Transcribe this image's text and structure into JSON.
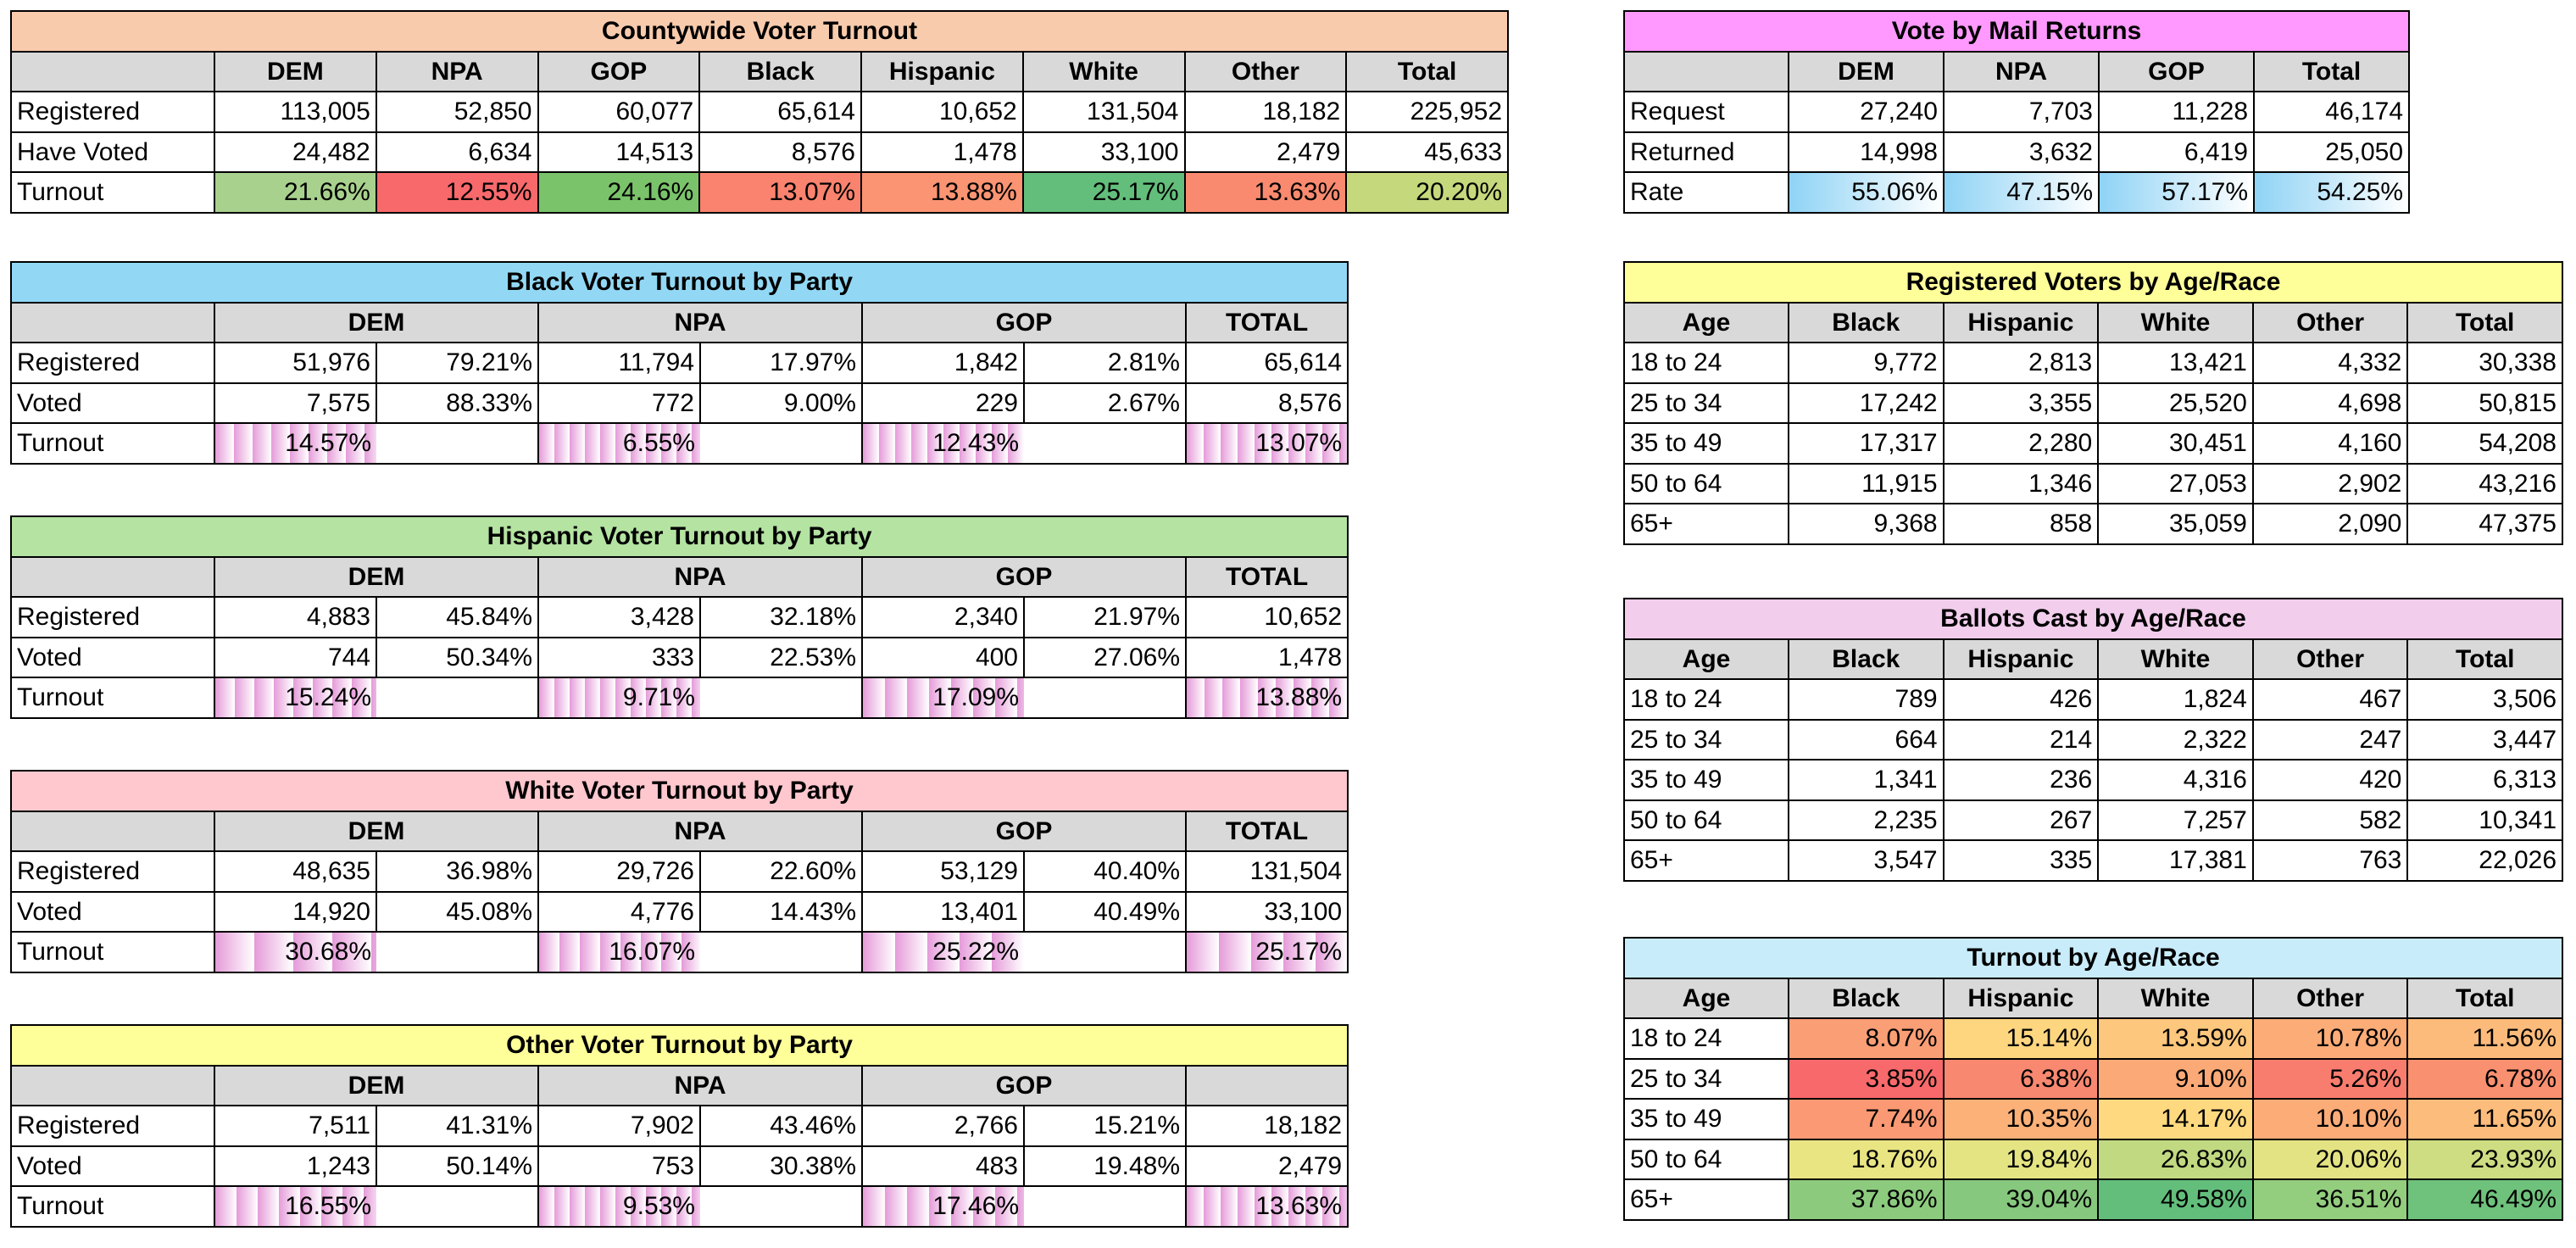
{
  "countywide": {
    "title": "Countywide Voter Turnout",
    "headers": [
      "DEM",
      "NPA",
      "GOP",
      "Black",
      "Hispanic",
      "White",
      "Other",
      "Total"
    ],
    "rows": [
      {
        "label": "Registered",
        "values": [
          "113,005",
          "52,850",
          "60,077",
          "65,614",
          "10,652",
          "131,504",
          "18,182",
          "225,952"
        ]
      },
      {
        "label": "Have Voted",
        "values": [
          "24,482",
          "6,634",
          "14,513",
          "8,576",
          "1,478",
          "33,100",
          "2,479",
          "45,633"
        ]
      },
      {
        "label": "Turnout",
        "values": [
          "21.66%",
          "12.55%",
          "24.16%",
          "13.07%",
          "13.88%",
          "25.17%",
          "13.63%",
          "20.20%"
        ]
      }
    ],
    "turnout_colors": [
      "#a9d18e",
      "#f8696b",
      "#7ac36a",
      "#f9836e",
      "#fa9472",
      "#63be7b",
      "#fa8a6f",
      "#c5d87c"
    ],
    "title_color": "#f8cbad"
  },
  "vbm": {
    "title": "Vote by Mail Returns",
    "headers": [
      "DEM",
      "NPA",
      "GOP",
      "Total"
    ],
    "rows": [
      {
        "label": "Request",
        "values": [
          "27,240",
          "7,703",
          "11,228",
          "46,174"
        ]
      },
      {
        "label": "Returned",
        "values": [
          "14,998",
          "3,632",
          "6,419",
          "25,050"
        ]
      },
      {
        "label": "Rate",
        "values": [
          "55.06%",
          "47.15%",
          "57.17%",
          "54.25%"
        ]
      }
    ],
    "title_color": "#ff99ff",
    "rate_color": "#8fd3f5"
  },
  "party_tables": [
    {
      "title": "Black Voter Turnout by Party",
      "title_color": "#92d8f5",
      "headers": [
        "DEM",
        "NPA",
        "GOP",
        "TOTAL"
      ],
      "registered": {
        "label": "Registered",
        "values": [
          "51,976",
          "79.21%",
          "11,794",
          "17.97%",
          "1,842",
          "2.81%",
          "65,614"
        ]
      },
      "voted": {
        "label": "Voted",
        "values": [
          "7,575",
          "88.33%",
          "772",
          "9.00%",
          "229",
          "2.67%",
          "8,576"
        ]
      },
      "turnout": {
        "label": "Turnout",
        "values": [
          "14.57%",
          "6.55%",
          "12.43%",
          "13.07%"
        ]
      },
      "bar_fractions": [
        0.1457,
        0.0655,
        0.1243,
        0.1307
      ]
    },
    {
      "title": "Hispanic Voter Turnout by Party",
      "title_color": "#b4e3a2",
      "headers": [
        "DEM",
        "NPA",
        "GOP",
        "TOTAL"
      ],
      "registered": {
        "label": "Registered",
        "values": [
          "4,883",
          "45.84%",
          "3,428",
          "32.18%",
          "2,340",
          "21.97%",
          "10,652"
        ]
      },
      "voted": {
        "label": "Voted",
        "values": [
          "744",
          "50.34%",
          "333",
          "22.53%",
          "400",
          "27.06%",
          "1,478"
        ]
      },
      "turnout": {
        "label": "Turnout",
        "values": [
          "15.24%",
          "9.71%",
          "17.09%",
          "13.88%"
        ]
      },
      "bar_fractions": [
        0.1524,
        0.0971,
        0.1709,
        0.1388
      ]
    },
    {
      "title": "White Voter Turnout by Party",
      "title_color": "#ffc7ce",
      "headers": [
        "DEM",
        "NPA",
        "GOP",
        "TOTAL"
      ],
      "registered": {
        "label": "Registered",
        "values": [
          "48,635",
          "36.98%",
          "29,726",
          "22.60%",
          "53,129",
          "40.40%",
          "131,504"
        ]
      },
      "voted": {
        "label": "Voted",
        "values": [
          "14,920",
          "45.08%",
          "4,776",
          "14.43%",
          "13,401",
          "40.49%",
          "33,100"
        ]
      },
      "turnout": {
        "label": "Turnout",
        "values": [
          "30.68%",
          "16.07%",
          "25.22%",
          "25.17%"
        ]
      },
      "bar_fractions": [
        0.3068,
        0.1607,
        0.2522,
        0.2517
      ]
    },
    {
      "title": "Other Voter Turnout by Party",
      "title_color": "#ffff99",
      "headers": [
        "DEM",
        "NPA",
        "GOP",
        ""
      ],
      "registered": {
        "label": "Registered",
        "values": [
          "7,511",
          "41.31%",
          "7,902",
          "43.46%",
          "2,766",
          "15.21%",
          "18,182"
        ]
      },
      "voted": {
        "label": "Voted",
        "values": [
          "1,243",
          "50.14%",
          "753",
          "30.38%",
          "483",
          "19.48%",
          "2,479"
        ]
      },
      "turnout": {
        "label": "Turnout",
        "values": [
          "16.55%",
          "9.53%",
          "17.46%",
          "13.63%"
        ]
      },
      "bar_fractions": [
        0.1655,
        0.0953,
        0.1746,
        0.1363
      ]
    }
  ],
  "age_tables": [
    {
      "title": "Registered Voters by Age/Race",
      "title_color": "#ffff99",
      "headers": [
        "Age",
        "Black",
        "Hispanic",
        "White",
        "Other",
        "Total"
      ],
      "rows": [
        [
          "18 to 24",
          "9,772",
          "2,813",
          "13,421",
          "4,332",
          "30,338"
        ],
        [
          "25 to 34",
          "17,242",
          "3,355",
          "25,520",
          "4,698",
          "50,815"
        ],
        [
          "35 to 49",
          "17,317",
          "2,280",
          "30,451",
          "4,160",
          "54,208"
        ],
        [
          "50 to 64",
          "11,915",
          "1,346",
          "27,053",
          "2,902",
          "43,216"
        ],
        [
          "65+",
          "9,368",
          "858",
          "35,059",
          "2,090",
          "47,375"
        ]
      ]
    },
    {
      "title": "Ballots Cast by Age/Race",
      "title_color": "#f2cdec",
      "headers": [
        "Age",
        "Black",
        "Hispanic",
        "White",
        "Other",
        "Total"
      ],
      "rows": [
        [
          "18 to 24",
          "789",
          "426",
          "1,824",
          "467",
          "3,506"
        ],
        [
          "25 to 34",
          "664",
          "214",
          "2,322",
          "247",
          "3,447"
        ],
        [
          "35 to 49",
          "1,341",
          "236",
          "4,316",
          "420",
          "6,313"
        ],
        [
          "50 to 64",
          "2,235",
          "267",
          "7,257",
          "582",
          "10,341"
        ],
        [
          "65+",
          "3,547",
          "335",
          "17,381",
          "763",
          "22,026"
        ]
      ]
    },
    {
      "title": "Turnout by Age/Race",
      "title_color": "#c9ecfa",
      "headers": [
        "Age",
        "Black",
        "Hispanic",
        "White",
        "Other",
        "Total"
      ],
      "rows": [
        [
          "18 to 24",
          "8.07%",
          "15.14%",
          "13.59%",
          "10.78%",
          "11.56%"
        ],
        [
          "25 to 34",
          "3.85%",
          "6.38%",
          "9.10%",
          "5.26%",
          "6.78%"
        ],
        [
          "35 to 49",
          "7.74%",
          "10.35%",
          "14.17%",
          "10.10%",
          "11.65%"
        ],
        [
          "50 to 64",
          "18.76%",
          "19.84%",
          "26.83%",
          "20.06%",
          "23.93%"
        ],
        [
          "65+",
          "37.86%",
          "39.04%",
          "49.58%",
          "36.51%",
          "46.49%"
        ]
      ],
      "cell_colors": [
        [
          "#fa9e75",
          "#fed680",
          "#fdc77d",
          "#fbac77",
          "#fcbb7a"
        ],
        [
          "#f8696b",
          "#f98870",
          "#fbaa77",
          "#f97d6e",
          "#f99070"
        ],
        [
          "#fa9973",
          "#fbb178",
          "#fed980",
          "#fbac77",
          "#fcbc7b"
        ],
        [
          "#e9e583",
          "#e5e483",
          "#c1d980",
          "#e4e383",
          "#cfdd82"
        ],
        [
          "#8ccb7e",
          "#86c87d",
          "#63be7b",
          "#93cd7e",
          "#6fc27c"
        ]
      ]
    }
  ]
}
